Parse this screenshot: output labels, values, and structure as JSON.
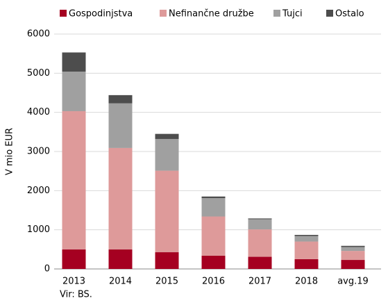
{
  "chart_data": {
    "type": "stacked_bar",
    "categories": [
      "2013",
      "2014",
      "2015",
      "2016",
      "2017",
      "2018",
      "avg.19"
    ],
    "series": [
      {
        "name": "Gospodinjstva",
        "color": "#a50021",
        "values": [
          500,
          500,
          430,
          340,
          310,
          250,
          230
        ]
      },
      {
        "name": "Nefinančne družbe",
        "color": "#de9a9a",
        "values": [
          3530,
          2590,
          2080,
          1000,
          700,
          450,
          230
        ]
      },
      {
        "name": "Tujci",
        "color": "#a0a0a0",
        "values": [
          1010,
          1140,
          810,
          470,
          260,
          140,
          100
        ]
      },
      {
        "name": "Ostalo",
        "color": "#4d4d4d",
        "values": [
          490,
          210,
          130,
          40,
          20,
          30,
          30
        ]
      }
    ],
    "y_label": "V mio EUR",
    "source": "Vir: BS.",
    "ylim": [
      0,
      6000
    ],
    "yticks": [
      0,
      1000,
      2000,
      3000,
      4000,
      5000,
      6000
    ],
    "grid": true,
    "legend": "top"
  }
}
